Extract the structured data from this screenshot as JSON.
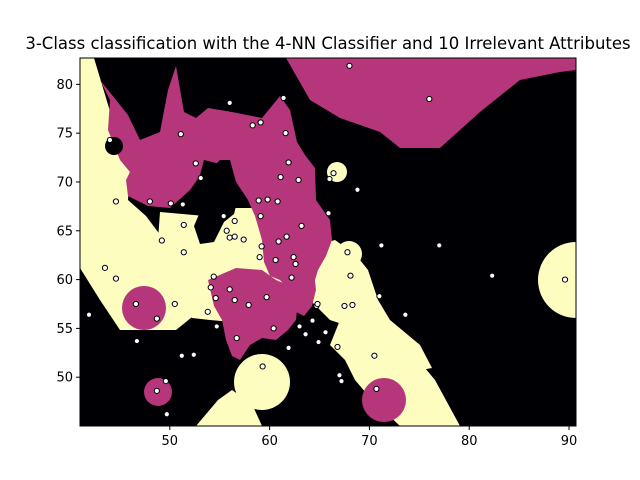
{
  "chart_data": {
    "type": "scatter",
    "title": "3-Class classification with the 4-NN Classifier and 10 Irrelevant Attributes",
    "xlabel": "",
    "ylabel": "",
    "xlim": [
      41,
      90.7
    ],
    "ylim": [
      45,
      82.7
    ],
    "xticks": [
      50,
      60,
      70,
      80,
      90
    ],
    "yticks": [
      50,
      55,
      60,
      65,
      70,
      75,
      80
    ],
    "grid": false,
    "legend": "none",
    "background_regions": "decision regions of three classes",
    "class_colors": {
      "black": "#000004",
      "magenta": "#b5367a",
      "yellow": "#fcfdbf"
    },
    "point_style": {
      "fill": "#ffffff",
      "edge": "#000000"
    },
    "points": [
      {
        "x": 44.0,
        "y": 74.3
      },
      {
        "x": 44.6,
        "y": 68.0
      },
      {
        "x": 44.6,
        "y": 60.1
      },
      {
        "x": 43.5,
        "y": 61.2
      },
      {
        "x": 41.9,
        "y": 56.4
      },
      {
        "x": 46.6,
        "y": 57.5
      },
      {
        "x": 46.7,
        "y": 53.7
      },
      {
        "x": 48.0,
        "y": 68.0
      },
      {
        "x": 48.7,
        "y": 56.0
      },
      {
        "x": 49.2,
        "y": 64.0
      },
      {
        "x": 48.7,
        "y": 48.6
      },
      {
        "x": 49.6,
        "y": 49.6
      },
      {
        "x": 49.7,
        "y": 46.2
      },
      {
        "x": 50.1,
        "y": 67.8
      },
      {
        "x": 50.5,
        "y": 57.5
      },
      {
        "x": 51.1,
        "y": 74.9
      },
      {
        "x": 51.3,
        "y": 67.7
      },
      {
        "x": 51.4,
        "y": 65.6
      },
      {
        "x": 51.4,
        "y": 62.8
      },
      {
        "x": 51.2,
        "y": 52.2
      },
      {
        "x": 52.4,
        "y": 52.3
      },
      {
        "x": 52.6,
        "y": 71.9
      },
      {
        "x": 53.1,
        "y": 70.4
      },
      {
        "x": 53.8,
        "y": 56.7
      },
      {
        "x": 54.1,
        "y": 59.2
      },
      {
        "x": 54.4,
        "y": 60.3
      },
      {
        "x": 54.7,
        "y": 55.2
      },
      {
        "x": 54.6,
        "y": 58.1
      },
      {
        "x": 55.4,
        "y": 66.5
      },
      {
        "x": 55.7,
        "y": 65.0
      },
      {
        "x": 56.0,
        "y": 78.1
      },
      {
        "x": 56.0,
        "y": 64.3
      },
      {
        "x": 56.0,
        "y": 59.0
      },
      {
        "x": 56.5,
        "y": 66.0
      },
      {
        "x": 56.5,
        "y": 64.4
      },
      {
        "x": 56.5,
        "y": 57.9
      },
      {
        "x": 56.7,
        "y": 54.0
      },
      {
        "x": 57.4,
        "y": 64.1
      },
      {
        "x": 57.9,
        "y": 57.4
      },
      {
        "x": 58.3,
        "y": 75.8
      },
      {
        "x": 59.1,
        "y": 76.1
      },
      {
        "x": 58.9,
        "y": 68.1
      },
      {
        "x": 59.1,
        "y": 66.5
      },
      {
        "x": 59.2,
        "y": 63.4
      },
      {
        "x": 59.0,
        "y": 62.3
      },
      {
        "x": 59.3,
        "y": 51.1
      },
      {
        "x": 59.7,
        "y": 58.2
      },
      {
        "x": 59.8,
        "y": 68.2
      },
      {
        "x": 60.4,
        "y": 55.0
      },
      {
        "x": 60.6,
        "y": 62.0
      },
      {
        "x": 60.8,
        "y": 68.0
      },
      {
        "x": 60.9,
        "y": 63.9
      },
      {
        "x": 61.1,
        "y": 70.5
      },
      {
        "x": 61.4,
        "y": 78.6
      },
      {
        "x": 61.6,
        "y": 75.0
      },
      {
        "x": 61.7,
        "y": 64.4
      },
      {
        "x": 61.9,
        "y": 72.0
      },
      {
        "x": 61.9,
        "y": 53.0
      },
      {
        "x": 62.2,
        "y": 60.2
      },
      {
        "x": 62.4,
        "y": 62.3
      },
      {
        "x": 62.6,
        "y": 61.6
      },
      {
        "x": 62.9,
        "y": 70.2
      },
      {
        "x": 63.2,
        "y": 65.5
      },
      {
        "x": 63.0,
        "y": 55.2
      },
      {
        "x": 63.6,
        "y": 54.4
      },
      {
        "x": 64.3,
        "y": 55.8
      },
      {
        "x": 64.7,
        "y": 57.3
      },
      {
        "x": 64.8,
        "y": 57.5
      },
      {
        "x": 64.9,
        "y": 53.6
      },
      {
        "x": 65.6,
        "y": 54.6
      },
      {
        "x": 65.9,
        "y": 66.8
      },
      {
        "x": 66.0,
        "y": 70.3
      },
      {
        "x": 66.4,
        "y": 70.9
      },
      {
        "x": 66.8,
        "y": 53.1
      },
      {
        "x": 67.0,
        "y": 50.2
      },
      {
        "x": 67.2,
        "y": 49.6
      },
      {
        "x": 67.5,
        "y": 57.3
      },
      {
        "x": 67.8,
        "y": 62.8
      },
      {
        "x": 68.1,
        "y": 60.4
      },
      {
        "x": 68.3,
        "y": 57.4
      },
      {
        "x": 68.0,
        "y": 81.9
      },
      {
        "x": 68.8,
        "y": 69.2
      },
      {
        "x": 70.5,
        "y": 52.2
      },
      {
        "x": 70.7,
        "y": 48.8
      },
      {
        "x": 71.0,
        "y": 58.3
      },
      {
        "x": 71.2,
        "y": 63.5
      },
      {
        "x": 73.6,
        "y": 56.4
      },
      {
        "x": 76.0,
        "y": 78.5
      },
      {
        "x": 77.0,
        "y": 63.5
      },
      {
        "x": 82.3,
        "y": 60.4
      },
      {
        "x": 89.6,
        "y": 60.0
      }
    ]
  }
}
